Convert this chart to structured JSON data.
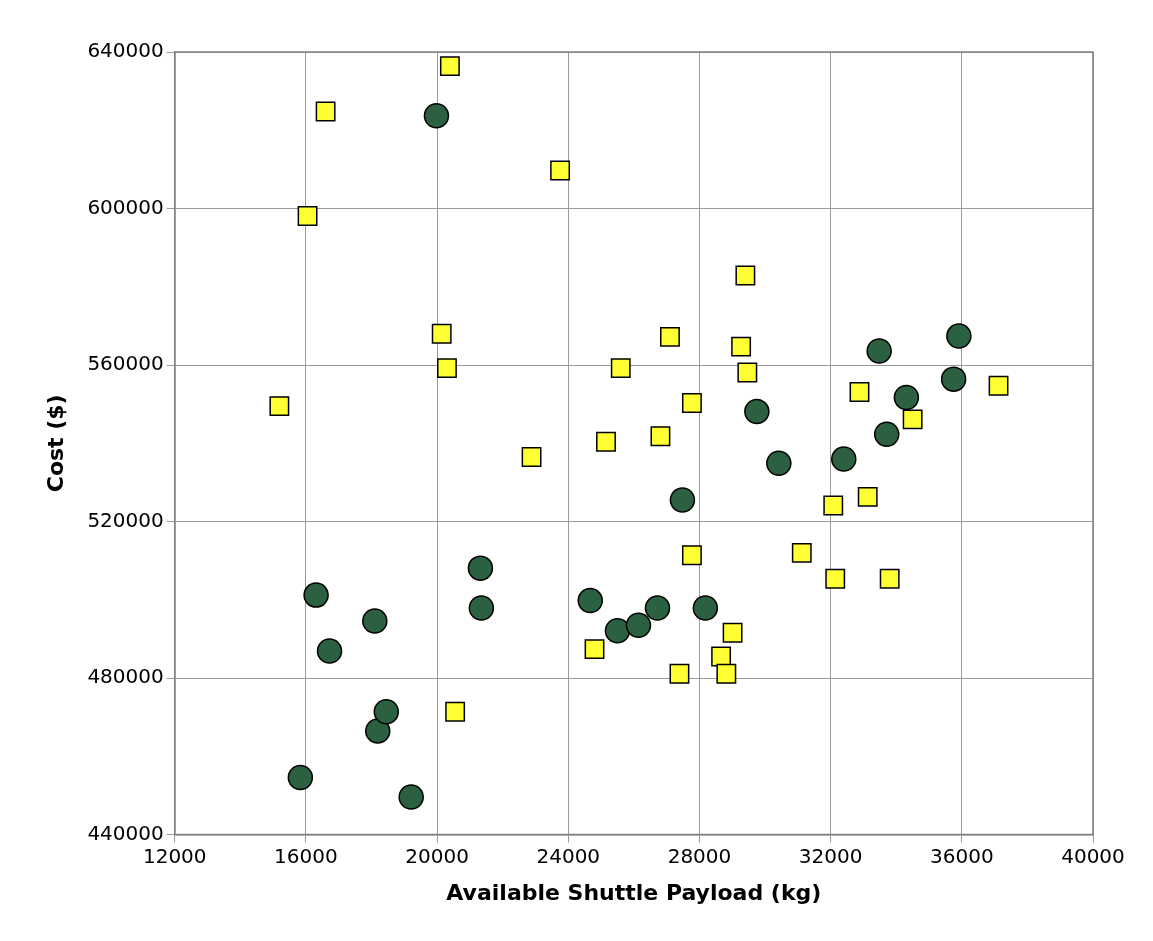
{
  "chart_data": {
    "type": "scatter",
    "xlabel": "Available Shuttle Payload (kg)",
    "ylabel": "Cost ($)",
    "xlim": [
      12000,
      40000
    ],
    "xticks": [
      12000,
      16000,
      20000,
      24000,
      28000,
      32000,
      36000,
      40000
    ],
    "ylim": [
      440000,
      640000
    ],
    "yticks": [
      440000,
      480000,
      520000,
      560000,
      600000,
      640000
    ],
    "grid": true,
    "legend": false,
    "series": [
      {
        "color": "#2b6141",
        "marker": "circle",
        "x": [
          19980,
          16310,
          16720,
          18100,
          15830,
          18190,
          18450,
          19210,
          21320,
          21350,
          24670,
          25500,
          26140,
          26720,
          27480,
          28180,
          29750,
          30420,
          32400,
          33480,
          33710,
          34310,
          35750,
          35910
        ],
        "values": [
          623700,
          501200,
          486900,
          494600,
          454600,
          466500,
          471400,
          449600,
          508100,
          497900,
          499800,
          492100,
          493500,
          497900,
          525500,
          497900,
          548100,
          534900,
          536000,
          563600,
          542300,
          551700,
          556400,
          567400
        ]
      },
      {
        "color": "#ffff33",
        "marker": "square",
        "x": [
          20390,
          16600,
          16050,
          23750,
          15190,
          20140,
          20300,
          20550,
          22880,
          25150,
          25600,
          24800,
          26810,
          27100,
          27770,
          27390,
          27770,
          28660,
          28820,
          29010,
          29400,
          29270,
          29460,
          32880,
          32080,
          32140,
          33130,
          31120,
          33800,
          34500,
          37120
        ],
        "values": [
          636400,
          624800,
          598100,
          609700,
          549500,
          568000,
          559200,
          471400,
          536500,
          540400,
          559200,
          487400,
          541800,
          567200,
          550300,
          481100,
          511400,
          485500,
          481100,
          491600,
          582900,
          564700,
          558100,
          553100,
          524100,
          505400,
          526300,
          512000,
          505400,
          546100,
          554700
        ]
      }
    ]
  }
}
